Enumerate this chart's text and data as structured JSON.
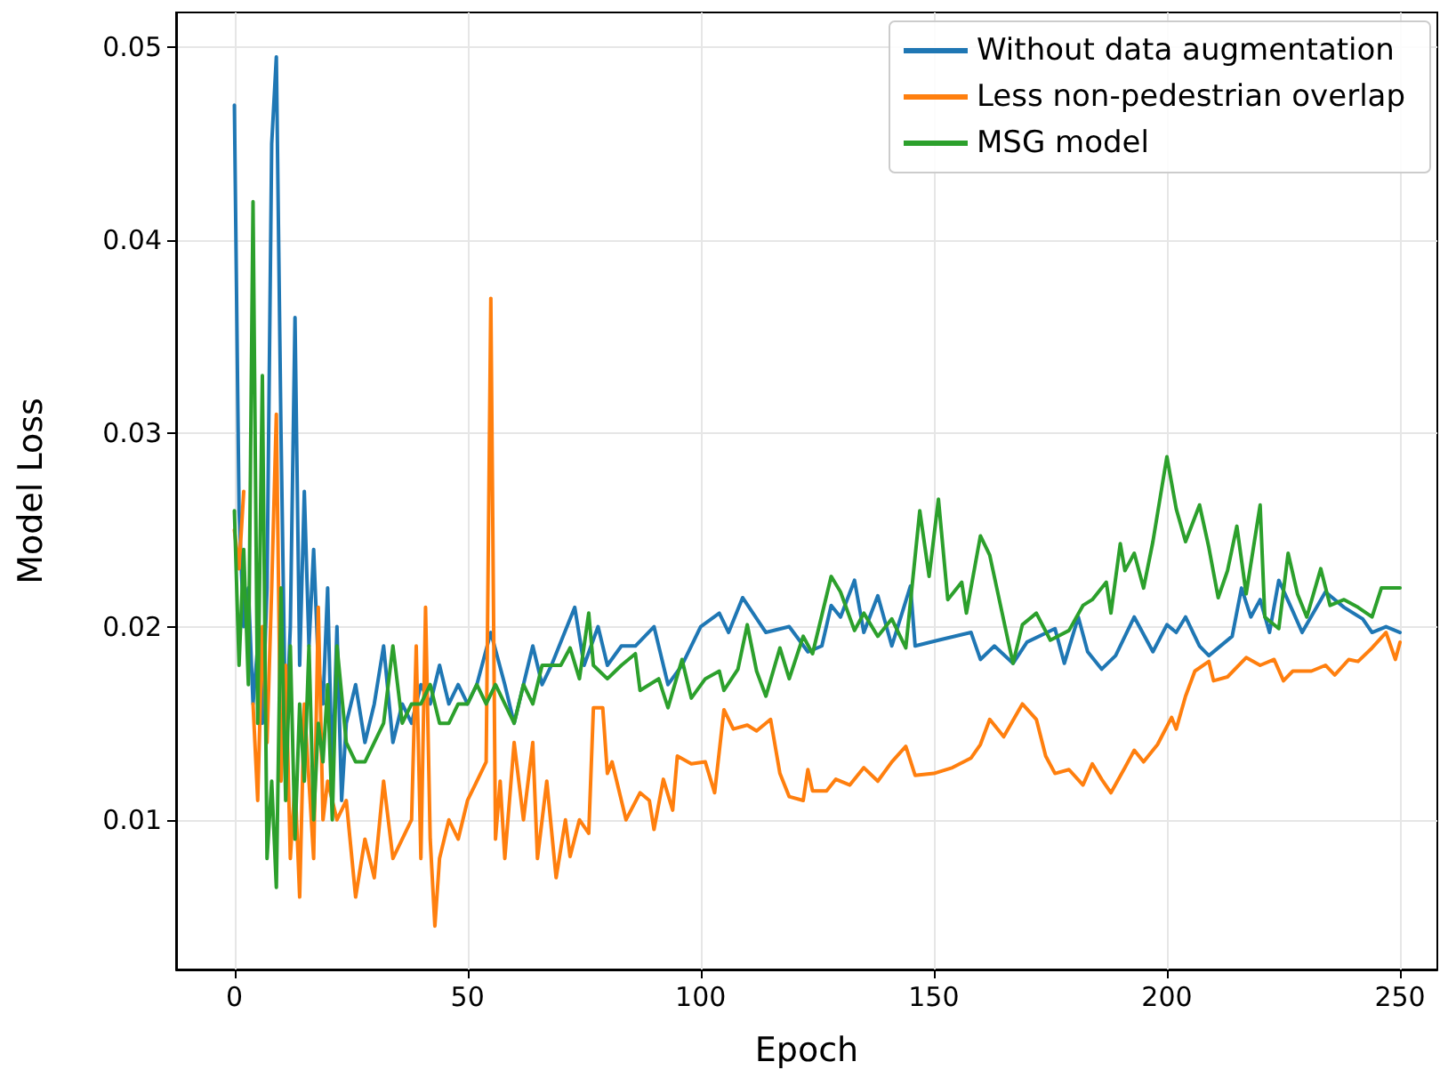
{
  "chart_data": {
    "type": "line",
    "xlabel": "Epoch",
    "ylabel": "Model Loss",
    "xlim": [
      -12.5,
      258
    ],
    "ylim": [
      0.00225,
      0.0518
    ],
    "xticks": [
      0,
      50,
      100,
      150,
      200,
      250
    ],
    "yticks": [
      0.01,
      0.02,
      0.03,
      0.04,
      0.05
    ],
    "grid": true,
    "legend": "top right",
    "series": [
      {
        "name": "Without data augmentation",
        "color": "#1f77b4",
        "x": [
          0,
          1,
          2,
          3,
          4,
          5,
          6,
          7,
          8,
          9,
          10,
          11,
          12,
          13,
          14,
          15,
          16,
          17,
          18,
          19,
          20,
          21,
          22,
          23,
          24,
          26,
          28,
          30,
          32,
          34,
          36,
          38,
          40,
          42,
          44,
          46,
          48,
          50,
          52,
          55,
          58,
          60,
          62,
          64,
          66,
          68,
          73,
          75,
          78,
          80,
          83,
          86,
          90,
          93,
          96,
          100,
          104,
          106,
          109,
          114,
          119,
          123,
          126,
          128,
          130,
          133,
          135,
          138,
          141,
          145,
          146,
          151,
          158,
          160,
          163,
          167,
          170,
          176,
          178,
          181,
          183,
          186,
          189,
          193,
          197,
          200,
          202,
          204,
          207,
          209,
          214,
          216,
          218,
          220,
          222,
          224,
          227,
          229,
          234,
          238,
          242,
          244,
          247,
          250
        ],
        "values": [
          0.047,
          0.026,
          0.02,
          0.022,
          0.016,
          0.019,
          0.015,
          0.022,
          0.045,
          0.0495,
          0.03,
          0.014,
          0.02,
          0.036,
          0.018,
          0.027,
          0.019,
          0.024,
          0.018,
          0.016,
          0.022,
          0.012,
          0.02,
          0.011,
          0.015,
          0.017,
          0.014,
          0.016,
          0.019,
          0.014,
          0.016,
          0.015,
          0.017,
          0.016,
          0.018,
          0.016,
          0.017,
          0.016,
          0.017,
          0.0197,
          0.017,
          0.015,
          0.017,
          0.019,
          0.017,
          0.018,
          0.021,
          0.018,
          0.02,
          0.018,
          0.019,
          0.019,
          0.02,
          0.017,
          0.018,
          0.02,
          0.0207,
          0.0197,
          0.0215,
          0.0197,
          0.02,
          0.0187,
          0.019,
          0.0211,
          0.0205,
          0.0224,
          0.0197,
          0.0216,
          0.019,
          0.0221,
          0.019,
          0.0193,
          0.0197,
          0.0183,
          0.019,
          0.0181,
          0.0192,
          0.0199,
          0.0181,
          0.0205,
          0.0187,
          0.0178,
          0.0185,
          0.0205,
          0.0187,
          0.0201,
          0.0197,
          0.0205,
          0.019,
          0.0185,
          0.0195,
          0.022,
          0.0205,
          0.0214,
          0.0197,
          0.0224,
          0.0208,
          0.0197,
          0.0218,
          0.021,
          0.0204,
          0.0197,
          0.02,
          0.0197
        ]
      },
      {
        "name": "Less non-pedestrian overlap",
        "color": "#ff7f0e",
        "x": [
          0,
          1,
          2,
          3,
          4,
          5,
          6,
          7,
          8,
          9,
          10,
          11,
          12,
          13,
          14,
          15,
          16,
          17,
          18,
          19,
          20,
          22,
          24,
          26,
          28,
          30,
          32,
          34,
          36,
          38,
          39,
          40,
          41,
          42,
          43,
          44,
          46,
          48,
          50,
          52,
          54,
          55,
          56,
          57,
          58,
          60,
          62,
          64,
          65,
          67,
          69,
          71,
          72,
          74,
          76,
          77,
          79,
          80,
          81,
          84,
          87,
          89,
          90,
          92,
          94,
          95,
          98,
          101,
          103,
          105,
          107,
          110,
          112,
          115,
          117,
          119,
          122,
          123,
          124,
          127,
          129,
          132,
          135,
          138,
          141,
          144,
          146,
          150,
          154,
          158,
          160,
          162,
          165,
          169,
          172,
          174,
          176,
          179,
          182,
          184,
          186,
          188,
          191,
          193,
          195,
          198,
          201,
          202,
          204,
          206,
          209,
          210,
          213,
          217,
          220,
          223,
          225,
          227,
          231,
          234,
          236,
          239,
          241,
          244,
          247,
          249,
          250
        ],
        "values": [
          0.025,
          0.023,
          0.027,
          null,
          0.016,
          0.011,
          0.02,
          0.014,
          0.022,
          0.031,
          0.012,
          0.018,
          0.008,
          0.012,
          0.006,
          0.016,
          0.012,
          0.008,
          0.021,
          0.01,
          0.012,
          0.01,
          0.011,
          0.006,
          0.009,
          0.007,
          0.012,
          0.008,
          0.009,
          0.01,
          0.019,
          0.008,
          0.021,
          0.009,
          0.0045,
          0.008,
          0.01,
          0.009,
          0.011,
          0.012,
          0.013,
          0.037,
          0.009,
          0.012,
          0.008,
          0.014,
          0.01,
          0.014,
          0.008,
          0.012,
          0.007,
          0.01,
          0.0081,
          0.01,
          0.0093,
          0.0158,
          0.0158,
          0.0124,
          0.013,
          0.01,
          0.0114,
          0.011,
          0.0095,
          0.0121,
          0.0105,
          0.0133,
          0.0129,
          0.013,
          0.0114,
          0.0157,
          0.0147,
          0.0149,
          0.0146,
          0.0152,
          0.0124,
          0.0112,
          0.011,
          0.0126,
          0.0115,
          0.0115,
          0.0121,
          0.0118,
          0.0127,
          0.012,
          0.013,
          0.0138,
          0.0123,
          0.0124,
          0.0127,
          0.0132,
          0.0139,
          0.0152,
          0.0143,
          0.016,
          0.0152,
          0.0133,
          0.0124,
          0.0126,
          0.0118,
          0.0129,
          0.0121,
          0.0114,
          0.0127,
          0.0136,
          0.013,
          0.0139,
          0.0153,
          0.0147,
          0.0164,
          0.0177,
          0.0182,
          0.0172,
          0.0174,
          0.0184,
          0.018,
          0.0183,
          0.0172,
          0.0177,
          0.0177,
          0.018,
          0.0175,
          0.0183,
          0.0182,
          0.0189,
          0.0197,
          0.0183,
          0.0192
        ]
      },
      {
        "name": "MSG model",
        "color": "#2ca02c",
        "x": [
          0,
          1,
          2,
          3,
          4,
          5,
          6,
          7,
          8,
          9,
          10,
          11,
          12,
          13,
          14,
          15,
          16,
          17,
          18,
          19,
          20,
          21,
          22,
          24,
          26,
          28,
          30,
          32,
          34,
          36,
          38,
          40,
          42,
          44,
          46,
          48,
          50,
          52,
          54,
          56,
          58,
          60,
          62,
          64,
          66,
          68,
          70,
          72,
          74,
          76,
          77,
          80,
          83,
          86,
          87,
          91,
          93,
          96,
          98,
          101,
          104,
          105,
          108,
          110,
          112,
          114,
          117,
          119,
          122,
          124,
          128,
          130,
          133,
          135,
          138,
          141,
          144,
          147,
          149,
          151,
          153,
          156,
          157,
          160,
          162,
          166,
          167,
          169,
          172,
          175,
          179,
          182,
          184,
          187,
          188,
          190,
          191,
          193,
          195,
          197,
          200,
          202,
          204,
          207,
          209,
          211,
          213,
          215,
          217,
          220,
          221,
          224,
          226,
          228,
          230,
          233,
          235,
          238,
          241,
          244,
          246,
          250
        ],
        "values": [
          0.026,
          0.018,
          0.024,
          0.017,
          0.042,
          0.015,
          0.033,
          0.008,
          0.012,
          0.0065,
          0.022,
          0.011,
          0.019,
          0.009,
          0.016,
          0.012,
          0.019,
          0.01,
          0.015,
          0.013,
          0.017,
          0.01,
          0.019,
          0.014,
          0.013,
          0.013,
          0.014,
          0.015,
          0.019,
          0.015,
          0.016,
          0.016,
          0.017,
          0.015,
          0.015,
          0.016,
          0.016,
          0.017,
          0.016,
          0.017,
          0.016,
          0.015,
          0.017,
          0.016,
          0.018,
          0.018,
          0.018,
          0.0189,
          0.0173,
          0.0207,
          0.018,
          0.0173,
          0.018,
          0.0186,
          0.0167,
          0.0173,
          0.0158,
          0.0183,
          0.0163,
          0.0173,
          0.0177,
          0.0167,
          0.0178,
          0.0201,
          0.0177,
          0.0164,
          0.0189,
          0.0173,
          0.0195,
          0.0186,
          0.0226,
          0.0218,
          0.0198,
          0.0207,
          0.0195,
          0.0204,
          0.0189,
          0.026,
          0.0226,
          0.0266,
          0.0214,
          0.0223,
          0.0207,
          0.0247,
          0.0237,
          0.0192,
          0.0181,
          0.0201,
          0.0207,
          0.0193,
          0.0198,
          0.0211,
          0.0214,
          0.0223,
          0.0207,
          0.0243,
          0.0229,
          0.0238,
          0.022,
          0.0244,
          0.0288,
          0.0261,
          0.0244,
          0.0263,
          0.0241,
          0.0215,
          0.0229,
          0.0252,
          0.0217,
          0.0263,
          0.0205,
          0.0199,
          0.0238,
          0.0217,
          0.0205,
          0.023,
          0.0211,
          0.0214,
          0.021,
          0.0205,
          0.022,
          0.022
        ]
      }
    ]
  }
}
